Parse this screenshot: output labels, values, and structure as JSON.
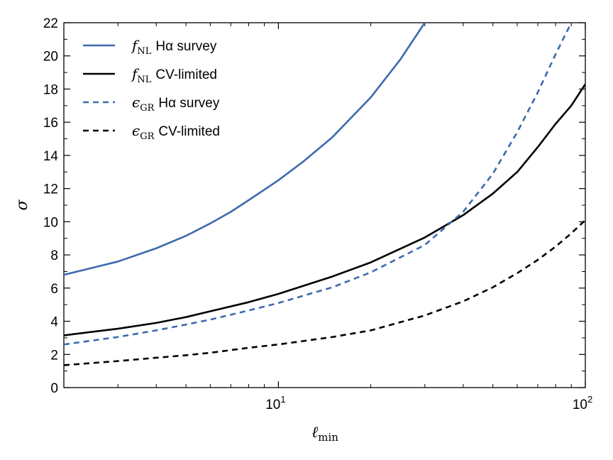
{
  "chart_data": {
    "type": "line",
    "xscale": "log",
    "xlim": [
      2,
      100
    ],
    "ylim": [
      0,
      22
    ],
    "yticks": [
      0,
      2,
      4,
      6,
      8,
      10,
      12,
      14,
      16,
      18,
      20,
      22
    ],
    "xtick_labels": [
      {
        "value": 10,
        "base": "10",
        "exp": "1"
      },
      {
        "value": 100,
        "base": "10",
        "exp": "2"
      }
    ],
    "xlabel": {
      "main": "ℓ",
      "sub": "min"
    },
    "ylabel": "σ",
    "legend_position": "top-left",
    "colors": {
      "blue": "#3d6aad",
      "black": "#000000"
    },
    "series": [
      {
        "name": "f_NL Hα survey",
        "legend_math": "f",
        "legend_sub": "NL",
        "legend_text": "Hα survey",
        "color": "blue",
        "dash": "solid",
        "points": [
          [
            2,
            6.8
          ],
          [
            3,
            7.6
          ],
          [
            4,
            8.4
          ],
          [
            5,
            9.15
          ],
          [
            6,
            9.9
          ],
          [
            7,
            10.6
          ],
          [
            8,
            11.3
          ],
          [
            10,
            12.5
          ],
          [
            12,
            13.6
          ],
          [
            15,
            15.1
          ],
          [
            20,
            17.5
          ],
          [
            25,
            19.8
          ],
          [
            29,
            21.6
          ],
          [
            30,
            22.0
          ]
        ]
      },
      {
        "name": "f_NL CV-limited",
        "legend_math": "f",
        "legend_sub": "NL",
        "legend_text": "CV-limited",
        "color": "black",
        "dash": "solid",
        "points": [
          [
            2,
            3.15
          ],
          [
            3,
            3.55
          ],
          [
            4,
            3.9
          ],
          [
            5,
            4.25
          ],
          [
            6,
            4.6
          ],
          [
            8,
            5.15
          ],
          [
            10,
            5.65
          ],
          [
            15,
            6.7
          ],
          [
            20,
            7.55
          ],
          [
            30,
            9.05
          ],
          [
            40,
            10.4
          ],
          [
            50,
            11.7
          ],
          [
            60,
            13.0
          ],
          [
            70,
            14.5
          ],
          [
            80,
            15.9
          ],
          [
            90,
            17.0
          ],
          [
            100,
            18.3
          ]
        ]
      },
      {
        "name": "ε_GR Hα survey",
        "legend_math": "ϵ",
        "legend_sub": "GR",
        "legend_text": "Hα survey",
        "color": "blue",
        "dash": "dashed",
        "points": [
          [
            2,
            2.6
          ],
          [
            3,
            3.05
          ],
          [
            4,
            3.45
          ],
          [
            5,
            3.8
          ],
          [
            6,
            4.1
          ],
          [
            8,
            4.65
          ],
          [
            10,
            5.1
          ],
          [
            15,
            6.05
          ],
          [
            20,
            6.95
          ],
          [
            30,
            8.6
          ],
          [
            40,
            10.6
          ],
          [
            50,
            12.9
          ],
          [
            60,
            15.4
          ],
          [
            70,
            17.8
          ],
          [
            80,
            20.1
          ],
          [
            90,
            22.0
          ]
        ]
      },
      {
        "name": "ε_GR CV-limited",
        "legend_math": "ϵ",
        "legend_sub": "GR",
        "legend_text": "CV-limited",
        "color": "black",
        "dash": "dashed",
        "points": [
          [
            2,
            1.35
          ],
          [
            3,
            1.6
          ],
          [
            4,
            1.8
          ],
          [
            5,
            1.95
          ],
          [
            6,
            2.1
          ],
          [
            8,
            2.4
          ],
          [
            10,
            2.6
          ],
          [
            15,
            3.05
          ],
          [
            20,
            3.45
          ],
          [
            30,
            4.35
          ],
          [
            40,
            5.2
          ],
          [
            50,
            6.05
          ],
          [
            60,
            6.9
          ],
          [
            70,
            7.7
          ],
          [
            80,
            8.5
          ],
          [
            90,
            9.3
          ],
          [
            100,
            10.1
          ]
        ]
      }
    ]
  }
}
